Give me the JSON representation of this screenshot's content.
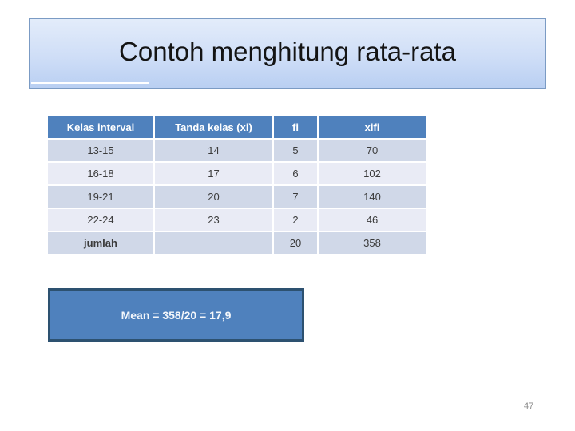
{
  "slide": {
    "title": "Contoh menghitung rata-rata",
    "page_number": "47"
  },
  "table": {
    "headers": [
      "Kelas interval",
      "Tanda kelas (xi)",
      "fi",
      "xifi"
    ],
    "rows": [
      [
        "13-15",
        "14",
        "5",
        "70"
      ],
      [
        "16-18",
        "17",
        "6",
        "102"
      ],
      [
        "19-21",
        "20",
        "7",
        "140"
      ],
      [
        "22-24",
        "23",
        "2",
        "46"
      ],
      [
        "jumlah",
        "",
        "20",
        "358"
      ]
    ]
  },
  "mean_box": {
    "text": "Mean = 358/20 = 17,9"
  },
  "colors": {
    "table_header_bg": "#4f81bd",
    "table_band_dark": "#d0d8e8",
    "table_band_light": "#e9ebf5",
    "mean_box_fill": "#4f81bd",
    "mean_box_border": "#2d5170",
    "title_gradient_top": "#e3ecfa",
    "title_gradient_bottom": "#b9cff2",
    "title_border": "#7b9bc4",
    "page_number_color": "#8a8a8a"
  }
}
